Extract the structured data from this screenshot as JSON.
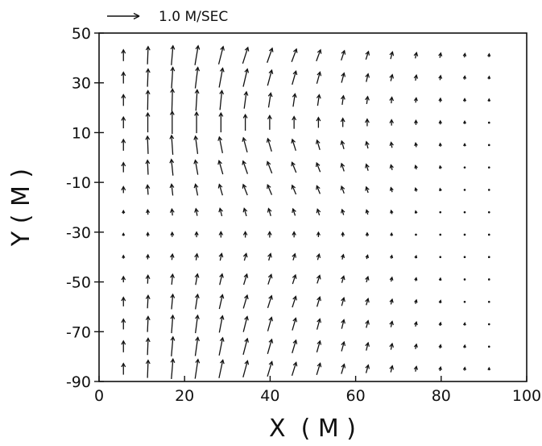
{
  "chart_data": {
    "type": "vector-field",
    "xlabel": "X  ( M )",
    "ylabel": "Y ( M )",
    "xlim": [
      0,
      100
    ],
    "ylim": [
      -90,
      50
    ],
    "xticks": [
      "0",
      "20",
      "40",
      "60",
      "80",
      "100"
    ],
    "yticks": [
      "50",
      "30",
      "10",
      "-10",
      "-30",
      "-50",
      "-70",
      "-90"
    ],
    "grid": false,
    "reference_vector": {
      "label": "1.0  M/SEC",
      "magnitude": 1.0
    },
    "grid_x": [
      5.7,
      11.4,
      17.1,
      22.8,
      28.5,
      34.2,
      39.9,
      45.6,
      51.3,
      57.0,
      62.7,
      68.4,
      74.1,
      79.8,
      85.5,
      91.2
    ],
    "grid_y": [
      41,
      32,
      23,
      14,
      5,
      -4,
      -13,
      -22,
      -31,
      -40,
      -49,
      -58,
      -67,
      -76,
      -85
    ],
    "vectors": {
      "u": [
        [
          0.0,
          0.02,
          0.05,
          0.1,
          0.14,
          0.16,
          0.16,
          0.15,
          0.13,
          0.1,
          0.08,
          0.06,
          0.04,
          0.03,
          0.02,
          0.01
        ],
        [
          0.0,
          0.02,
          0.04,
          0.08,
          0.11,
          0.13,
          0.13,
          0.12,
          0.1,
          0.08,
          0.06,
          0.05,
          0.03,
          0.02,
          0.01,
          0.01
        ],
        [
          0.0,
          0.01,
          0.02,
          0.04,
          0.06,
          0.07,
          0.07,
          0.06,
          0.05,
          0.04,
          0.03,
          0.02,
          0.02,
          0.01,
          0.0,
          0.0
        ],
        [
          0.0,
          0.0,
          0.0,
          0.0,
          0.0,
          0.0,
          0.0,
          0.0,
          0.0,
          0.0,
          0.0,
          0.0,
          0.0,
          0.0,
          0.0,
          0.0
        ],
        [
          0.0,
          -0.02,
          -0.04,
          -0.07,
          -0.1,
          -0.12,
          -0.12,
          -0.11,
          -0.09,
          -0.07,
          -0.05,
          -0.03,
          -0.02,
          -0.01,
          0.0,
          0.0
        ],
        [
          0.0,
          -0.02,
          -0.05,
          -0.08,
          -0.12,
          -0.14,
          -0.14,
          -0.13,
          -0.11,
          -0.08,
          -0.06,
          -0.04,
          -0.03,
          -0.02,
          -0.01,
          0.0
        ],
        [
          0.0,
          -0.02,
          -0.04,
          -0.07,
          -0.1,
          -0.13,
          -0.13,
          -0.12,
          -0.1,
          -0.08,
          -0.06,
          -0.04,
          -0.03,
          -0.02,
          -0.01,
          0.0
        ],
        [
          0.0,
          -0.01,
          -0.02,
          -0.04,
          -0.06,
          -0.07,
          -0.07,
          -0.07,
          -0.06,
          -0.05,
          -0.04,
          -0.03,
          -0.02,
          -0.01,
          0.0,
          0.0
        ],
        [
          0.0,
          0.0,
          0.0,
          0.0,
          0.0,
          0.0,
          0.0,
          0.0,
          0.0,
          0.0,
          0.0,
          0.0,
          0.0,
          0.0,
          0.0,
          0.0
        ],
        [
          0.0,
          0.01,
          0.02,
          0.03,
          0.05,
          0.06,
          0.06,
          0.06,
          0.05,
          0.04,
          0.03,
          0.02,
          0.02,
          0.01,
          0.0,
          0.0
        ],
        [
          0.0,
          0.01,
          0.03,
          0.06,
          0.08,
          0.1,
          0.1,
          0.09,
          0.08,
          0.06,
          0.05,
          0.03,
          0.02,
          0.01,
          0.01,
          0.0
        ],
        [
          0.0,
          0.02,
          0.04,
          0.07,
          0.1,
          0.12,
          0.12,
          0.11,
          0.09,
          0.07,
          0.06,
          0.04,
          0.03,
          0.02,
          0.01,
          0.0
        ],
        [
          0.0,
          0.02,
          0.04,
          0.07,
          0.1,
          0.12,
          0.12,
          0.11,
          0.09,
          0.07,
          0.06,
          0.04,
          0.03,
          0.02,
          0.01,
          0.0
        ],
        [
          0.0,
          0.02,
          0.05,
          0.08,
          0.11,
          0.13,
          0.13,
          0.12,
          0.1,
          0.08,
          0.06,
          0.04,
          0.03,
          0.02,
          0.01,
          0.0
        ],
        [
          0.0,
          0.02,
          0.05,
          0.09,
          0.12,
          0.14,
          0.14,
          0.13,
          0.11,
          0.09,
          0.07,
          0.05,
          0.03,
          0.02,
          0.01,
          0.0
        ]
      ],
      "v": [
        [
          0.35,
          0.55,
          0.6,
          0.6,
          0.55,
          0.5,
          0.45,
          0.4,
          0.35,
          0.3,
          0.25,
          0.22,
          0.18,
          0.15,
          0.12,
          0.1
        ],
        [
          0.35,
          0.55,
          0.65,
          0.65,
          0.6,
          0.55,
          0.48,
          0.42,
          0.36,
          0.3,
          0.25,
          0.2,
          0.17,
          0.14,
          0.11,
          0.09
        ],
        [
          0.35,
          0.6,
          0.7,
          0.65,
          0.6,
          0.52,
          0.45,
          0.4,
          0.34,
          0.28,
          0.23,
          0.19,
          0.15,
          0.12,
          0.1,
          0.08
        ],
        [
          0.35,
          0.6,
          0.7,
          0.65,
          0.6,
          0.5,
          0.44,
          0.38,
          0.32,
          0.27,
          0.22,
          0.18,
          0.14,
          0.11,
          0.09,
          0.07
        ],
        [
          0.35,
          0.55,
          0.6,
          0.55,
          0.5,
          0.45,
          0.4,
          0.35,
          0.3,
          0.25,
          0.21,
          0.17,
          0.13,
          0.1,
          0.08,
          0.06
        ],
        [
          0.3,
          0.45,
          0.5,
          0.45,
          0.42,
          0.4,
          0.36,
          0.32,
          0.28,
          0.24,
          0.2,
          0.16,
          0.12,
          0.09,
          0.07,
          0.05
        ],
        [
          0.2,
          0.3,
          0.35,
          0.35,
          0.34,
          0.33,
          0.31,
          0.28,
          0.25,
          0.22,
          0.18,
          0.14,
          0.11,
          0.08,
          0.06,
          0.05
        ],
        [
          0.1,
          0.15,
          0.2,
          0.22,
          0.24,
          0.24,
          0.23,
          0.21,
          0.19,
          0.17,
          0.14,
          0.11,
          0.08,
          0.06,
          0.05,
          0.04
        ],
        [
          0.08,
          0.12,
          0.14,
          0.16,
          0.18,
          0.18,
          0.18,
          0.17,
          0.15,
          0.13,
          0.11,
          0.09,
          0.07,
          0.05,
          0.04,
          0.03
        ],
        [
          0.1,
          0.14,
          0.18,
          0.2,
          0.22,
          0.22,
          0.21,
          0.2,
          0.18,
          0.15,
          0.12,
          0.1,
          0.08,
          0.06,
          0.05,
          0.04
        ],
        [
          0.18,
          0.26,
          0.32,
          0.34,
          0.34,
          0.33,
          0.31,
          0.28,
          0.25,
          0.21,
          0.17,
          0.13,
          0.1,
          0.08,
          0.06,
          0.05
        ],
        [
          0.28,
          0.4,
          0.46,
          0.46,
          0.44,
          0.41,
          0.38,
          0.34,
          0.3,
          0.25,
          0.2,
          0.16,
          0.12,
          0.09,
          0.07,
          0.05
        ],
        [
          0.32,
          0.48,
          0.55,
          0.55,
          0.52,
          0.48,
          0.43,
          0.38,
          0.33,
          0.28,
          0.22,
          0.18,
          0.14,
          0.1,
          0.08,
          0.06
        ],
        [
          0.35,
          0.52,
          0.6,
          0.58,
          0.55,
          0.5,
          0.45,
          0.4,
          0.35,
          0.29,
          0.24,
          0.19,
          0.15,
          0.11,
          0.09,
          0.07
        ],
        [
          0.35,
          0.55,
          0.62,
          0.6,
          0.56,
          0.51,
          0.46,
          0.41,
          0.36,
          0.3,
          0.25,
          0.2,
          0.16,
          0.12,
          0.1,
          0.08
        ]
      ]
    }
  }
}
